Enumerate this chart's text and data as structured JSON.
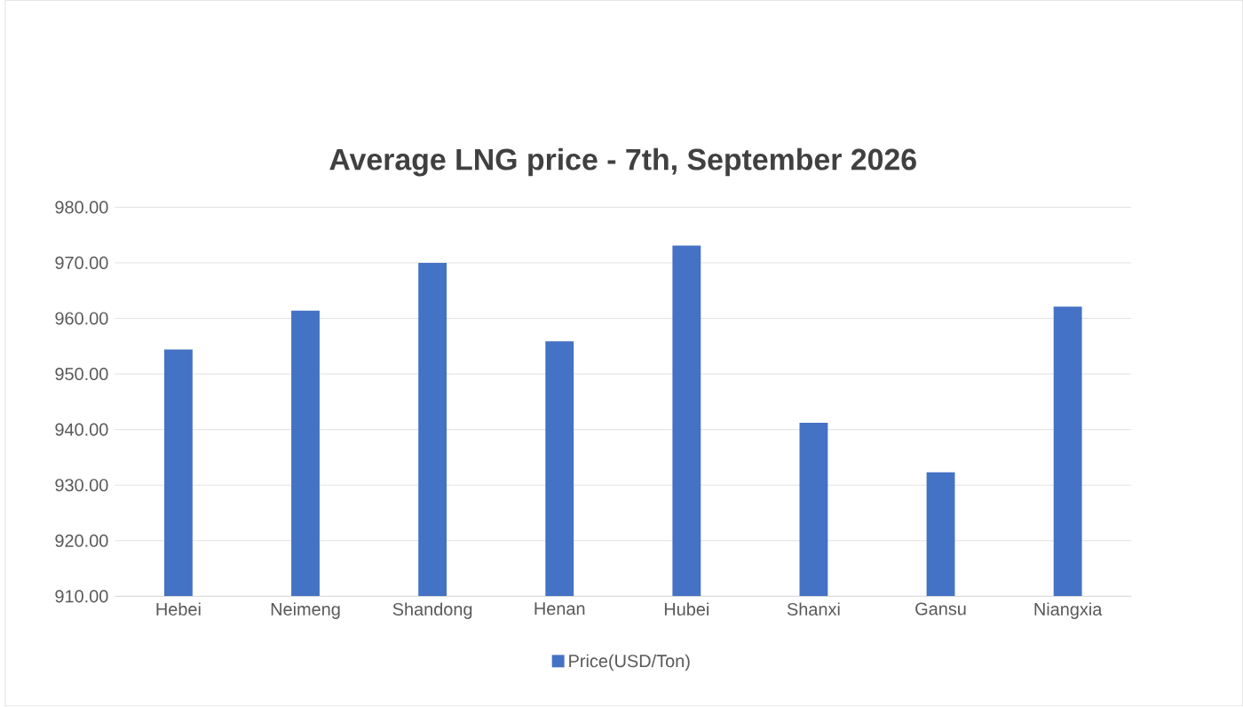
{
  "chart_data": {
    "type": "bar",
    "title": "Average LNG price - 7th, September 2026",
    "categories": [
      "Hebei",
      "Neimeng",
      "Shandong",
      "Henan",
      "Hubei",
      "Shanxi",
      "Gansu",
      "Niangxia"
    ],
    "series": [
      {
        "name": "Price(USD/Ton)",
        "color": "#4472c4",
        "values": [
          954.4,
          961.4,
          970.0,
          955.9,
          973.1,
          941.2,
          932.3,
          962.1
        ]
      }
    ],
    "ylim": [
      910,
      980
    ],
    "yticks": [
      {
        "value": 910,
        "label": "910.00"
      },
      {
        "value": 920,
        "label": "920.00"
      },
      {
        "value": 930,
        "label": "930.00"
      },
      {
        "value": 940,
        "label": "940.00"
      },
      {
        "value": 950,
        "label": "950.00"
      },
      {
        "value": 960,
        "label": "960.00"
      },
      {
        "value": 970,
        "label": "970.00"
      },
      {
        "value": 980,
        "label": "980.00"
      }
    ],
    "grid": "y",
    "legend": "bottom"
  }
}
